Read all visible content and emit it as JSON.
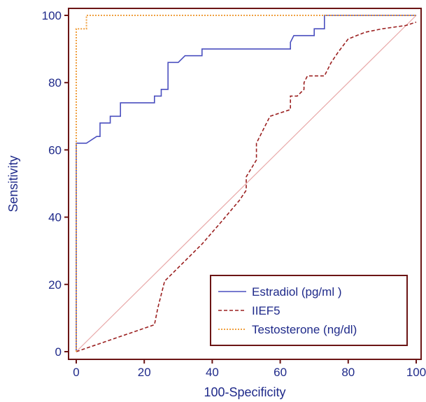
{
  "chart_data": {
    "type": "line",
    "title": "",
    "xlabel": "100-Specificity",
    "ylabel": "Sensitivity",
    "xlim": [
      0,
      100
    ],
    "ylim": [
      0,
      100
    ],
    "x_ticks": [
      "0",
      "20",
      "40",
      "60",
      "80",
      "100"
    ],
    "y_ticks": [
      "0",
      "20",
      "40",
      "60",
      "80",
      "100"
    ],
    "legend_position": "bottom-right",
    "grid": false,
    "diagonal_reference": true,
    "colors": {
      "frame": "#6b1515",
      "text": "#1f2a8a",
      "diagonal": "#e8a8a8"
    },
    "series": [
      {
        "name": "Estradiol (pg/ml )",
        "color": "#4a4fbf",
        "style": "solid",
        "points": [
          [
            0,
            0
          ],
          [
            0,
            62
          ],
          [
            3,
            62
          ],
          [
            3,
            62
          ],
          [
            6,
            64
          ],
          [
            7,
            64
          ],
          [
            7,
            68
          ],
          [
            10,
            68
          ],
          [
            10,
            70
          ],
          [
            13,
            70
          ],
          [
            13,
            74
          ],
          [
            23,
            74
          ],
          [
            23,
            76
          ],
          [
            25,
            76
          ],
          [
            25,
            78
          ],
          [
            27,
            78
          ],
          [
            27,
            86
          ],
          [
            30,
            86
          ],
          [
            32,
            88
          ],
          [
            35,
            88
          ],
          [
            37,
            88
          ],
          [
            37,
            90
          ],
          [
            63,
            90
          ],
          [
            63,
            92
          ],
          [
            64,
            94
          ],
          [
            70,
            94
          ],
          [
            70,
            96
          ],
          [
            73,
            96
          ],
          [
            73,
            100
          ],
          [
            100,
            100
          ]
        ]
      },
      {
        "name": "IIEF5",
        "color": "#9b2020",
        "style": "dashed",
        "points": [
          [
            0,
            0
          ],
          [
            23,
            8
          ],
          [
            24,
            13
          ],
          [
            26,
            21
          ],
          [
            28,
            23
          ],
          [
            37,
            32
          ],
          [
            43,
            39
          ],
          [
            48,
            45
          ],
          [
            50,
            48
          ],
          [
            50,
            52
          ],
          [
            53,
            57
          ],
          [
            53,
            62
          ],
          [
            55,
            66
          ],
          [
            57,
            70
          ],
          [
            63,
            72
          ],
          [
            63,
            76
          ],
          [
            65,
            76
          ],
          [
            67,
            78
          ],
          [
            67,
            80
          ],
          [
            68,
            82
          ],
          [
            72,
            82
          ],
          [
            73,
            82
          ],
          [
            75,
            86
          ],
          [
            77,
            89
          ],
          [
            80,
            93
          ],
          [
            85,
            95
          ],
          [
            90,
            96
          ],
          [
            97,
            97
          ],
          [
            100,
            98
          ]
        ]
      },
      {
        "name": "Testosterone (ng/dl)",
        "color": "#f0a040",
        "style": "dotted",
        "points": [
          [
            0,
            0
          ],
          [
            0,
            96
          ],
          [
            3,
            96
          ],
          [
            3,
            100
          ],
          [
            100,
            100
          ]
        ]
      }
    ]
  }
}
